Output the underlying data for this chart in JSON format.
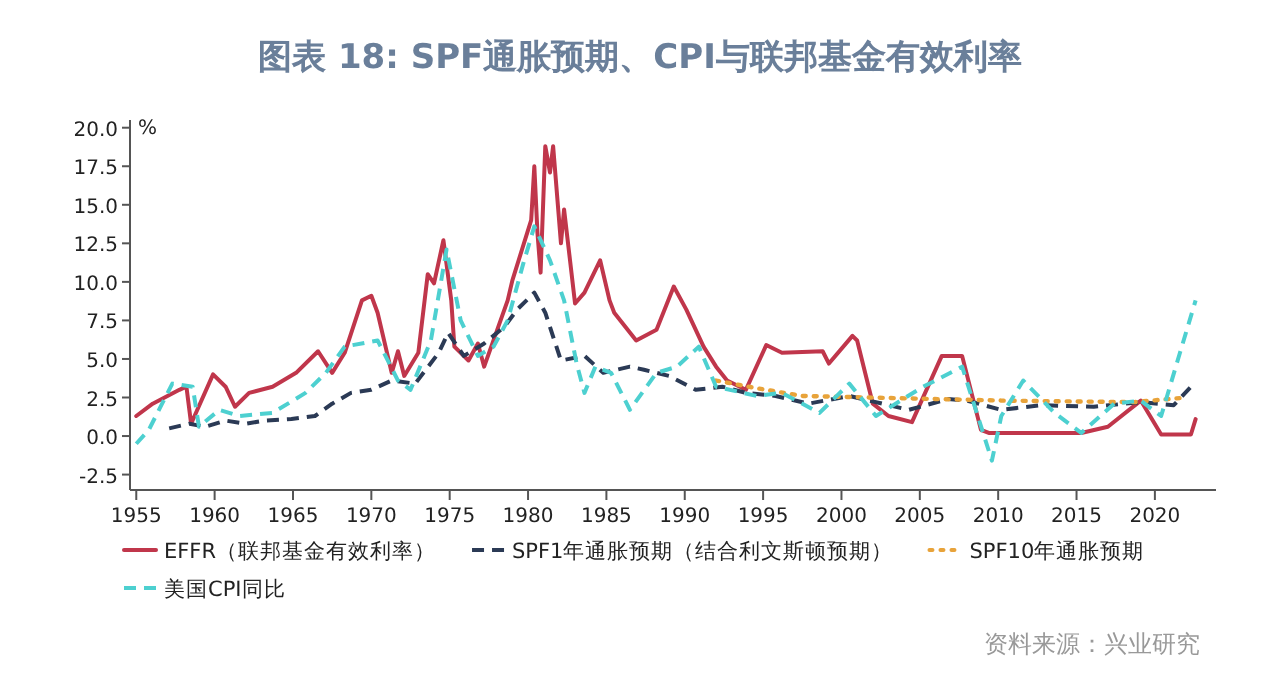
{
  "chart_data": {
    "type": "line",
    "title": "图表 18: SPF通胀预期、CPI与联邦基金有效利率",
    "ylabel": "%",
    "annotations": [
      "资料来源：兴业研究"
    ],
    "legend": "bottom",
    "grid": false,
    "marker": "none",
    "xlim": [
      1954.6,
      2023.9
    ],
    "ylim": [
      -3.5,
      20.5
    ],
    "xticks": [
      1955,
      1960,
      1965,
      1970,
      1975,
      1980,
      1985,
      1990,
      1995,
      2000,
      2005,
      2010,
      2015,
      2020
    ],
    "yticks": [
      {
        "value": -2.5,
        "label": "-2.5"
      },
      {
        "value": 0,
        "label": "0.0"
      },
      {
        "value": 2.5,
        "label": "2.5"
      },
      {
        "value": 5,
        "label": "5.0"
      },
      {
        "value": 7.5,
        "label": "7.5"
      },
      {
        "value": 10,
        "label": "10.0"
      },
      {
        "value": 12.5,
        "label": "12.5"
      },
      {
        "value": 15,
        "label": "15.0"
      },
      {
        "value": 17.5,
        "label": "17.5"
      },
      {
        "value": 20,
        "label": "20.0"
      }
    ],
    "series": [
      {
        "name": "EFFR（联邦基金有效利率）",
        "color": "#c0364b",
        "line_style": "solid",
        "x": [
          1955.0,
          1956.05,
          1957.75,
          1958.2,
          1958.5,
          1959.9,
          1960.7,
          1961.3,
          1962.2,
          1963.7,
          1965.2,
          1966.6,
          1967.5,
          1968.3,
          1969.4,
          1970.0,
          1970.4,
          1971.3,
          1971.7,
          1972.1,
          1973.0,
          1973.6,
          1974.0,
          1974.6,
          1975.1,
          1975.3,
          1976.2,
          1976.8,
          1977.2,
          1978.7,
          1979.0,
          1980.2,
          1980.4,
          1980.6,
          1980.8,
          1981.1,
          1981.4,
          1981.6,
          1982.1,
          1982.3,
          1983.0,
          1983.6,
          1984.6,
          1985.2,
          1985.5,
          1986.9,
          1988.2,
          1989.3,
          1990.1,
          1991.2,
          1992.0,
          1992.7,
          1993.9,
          1995.2,
          1996.2,
          1998.8,
          1999.2,
          2000.7,
          2001.0,
          2002.0,
          2003.0,
          2004.5,
          2006.4,
          2007.7,
          2008.9,
          2009.4,
          2015.3,
          2017.0,
          2019.1,
          2020.4,
          2022.3,
          2022.6
        ],
        "values": [
          1.3,
          2.1,
          3.0,
          3.2,
          0.8,
          4.0,
          3.2,
          1.9,
          2.8,
          3.2,
          4.1,
          5.5,
          4.1,
          5.4,
          8.8,
          9.1,
          8.0,
          4.1,
          5.5,
          3.9,
          5.4,
          10.5,
          9.9,
          12.7,
          8.8,
          5.8,
          4.9,
          6.0,
          4.5,
          8.8,
          10.1,
          14.0,
          17.5,
          13.2,
          10.6,
          18.8,
          17.1,
          18.8,
          12.5,
          14.7,
          8.6,
          9.3,
          11.4,
          8.8,
          8.0,
          6.2,
          6.9,
          9.7,
          8.2,
          5.8,
          4.5,
          3.6,
          3.0,
          5.9,
          5.4,
          5.5,
          4.7,
          6.5,
          6.2,
          2.1,
          1.3,
          0.9,
          5.2,
          5.2,
          0.4,
          0.2,
          0.2,
          0.6,
          2.3,
          0.1,
          0.1,
          1.1
        ]
      },
      {
        "name": "SPF1年通胀预期（结合利文斯顿预期）",
        "color": "#2b3a55",
        "line_style": "dashed",
        "x": [
          1957.1,
          1958.4,
          1959.4,
          1960.7,
          1962.0,
          1963.2,
          1964.9,
          1966.4,
          1967.5,
          1968.7,
          1970.0,
          1971.3,
          1972.8,
          1974.3,
          1974.9,
          1975.9,
          1977.2,
          1978.5,
          1979.3,
          1980.4,
          1981.1,
          1982.1,
          1983.6,
          1984.8,
          1986.5,
          1987.4,
          1989.0,
          1990.7,
          1992.4,
          1993.9,
          1995.8,
          1997.9,
          2000.5,
          2002.6,
          2004.3,
          2006.8,
          2008.0,
          2010.2,
          2012.7,
          2016.1,
          2019.1,
          2021.2,
          2022.5
        ],
        "values": [
          0.5,
          0.8,
          0.6,
          1.0,
          0.8,
          1.0,
          1.1,
          1.3,
          2.1,
          2.8,
          3.0,
          3.6,
          3.4,
          5.4,
          6.7,
          5.2,
          6.0,
          7.1,
          8.2,
          9.3,
          8.0,
          4.9,
          5.2,
          4.1,
          4.5,
          4.3,
          3.9,
          3.0,
          3.2,
          2.8,
          2.6,
          2.1,
          2.6,
          2.1,
          1.7,
          2.4,
          2.3,
          1.7,
          2.0,
          1.9,
          2.2,
          2.0,
          3.4
        ]
      },
      {
        "name": "SPF10年通胀预期",
        "color": "#e8a33a",
        "line_style": "dotted",
        "x": [
          1992.0,
          1994.6,
          1997.5,
          2001.7,
          2010.2,
          2018.7,
          2022.0
        ],
        "values": [
          3.6,
          3.1,
          2.6,
          2.5,
          2.3,
          2.2,
          2.5
        ]
      },
      {
        "name": "美国CPI同比",
        "color": "#4dd0d0",
        "line_style": "dashed",
        "x": [
          1955.0,
          1955.8,
          1957.3,
          1958.6,
          1959.0,
          1960.3,
          1961.6,
          1963.7,
          1965.8,
          1967.1,
          1968.3,
          1970.4,
          1971.7,
          1972.5,
          1973.8,
          1974.8,
          1975.7,
          1976.8,
          1977.8,
          1978.7,
          1979.7,
          1980.4,
          1981.4,
          1982.3,
          1983.1,
          1983.6,
          1984.3,
          1985.3,
          1986.5,
          1988.2,
          1989.5,
          1990.9,
          1992.0,
          1994.6,
          1996.2,
          1998.6,
          2000.5,
          2002.2,
          2005.2,
          2006.0,
          2007.7,
          2009.6,
          2010.2,
          2011.6,
          2013.6,
          2015.3,
          2017.4,
          2019.1,
          2020.4,
          2021.6,
          2022.6
        ],
        "values": [
          -0.5,
          0.4,
          3.4,
          3.2,
          0.6,
          1.7,
          1.3,
          1.5,
          2.8,
          4.1,
          5.8,
          6.2,
          3.6,
          3.0,
          6.2,
          12.1,
          7.5,
          5.2,
          5.8,
          7.5,
          11.2,
          13.6,
          11.4,
          8.8,
          4.7,
          2.8,
          4.5,
          4.1,
          1.7,
          4.1,
          4.5,
          5.8,
          3.2,
          2.6,
          2.8,
          1.5,
          3.4,
          1.3,
          3.2,
          3.6,
          4.5,
          -1.6,
          1.3,
          3.6,
          1.5,
          0.2,
          2.1,
          2.3,
          1.3,
          5.4,
          8.8
        ]
      }
    ]
  }
}
